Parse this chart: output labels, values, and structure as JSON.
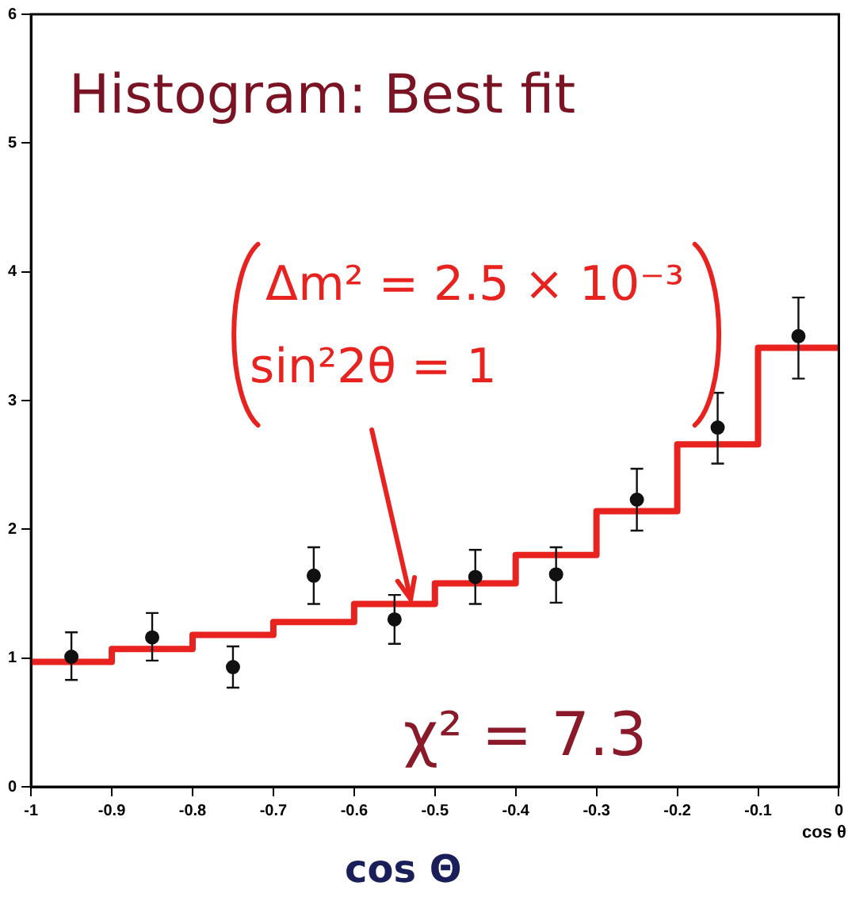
{
  "chart_data": {
    "type": "histogram",
    "title": "Histogram: Best fit",
    "xlabel": "cos θ",
    "bins": [
      -1,
      -0.9,
      -0.8,
      -0.7,
      -0.6,
      -0.5,
      -0.4,
      -0.3,
      -0.2,
      -0.1,
      0
    ],
    "series": [
      {
        "color": "#e8231f",
        "values": [
          0.97,
          1.07,
          1.18,
          1.28,
          1.42,
          1.58,
          1.8,
          2.14,
          2.66,
          3.41
        ]
      },
      {
        "type": "scatter",
        "color": "#111111",
        "x": [
          -0.95,
          -0.85,
          -0.75,
          -0.65,
          -0.55,
          -0.45,
          -0.35,
          -0.25,
          -0.15,
          -0.05
        ],
        "values": [
          1.01,
          1.16,
          0.93,
          1.64,
          1.3,
          1.63,
          1.65,
          2.23,
          2.79,
          3.5
        ],
        "errors": [
          [
            0.83,
            1.2
          ],
          [
            0.98,
            1.35
          ],
          [
            0.77,
            1.09
          ],
          [
            1.42,
            1.86
          ],
          [
            1.11,
            1.49
          ],
          [
            1.42,
            1.84
          ],
          [
            1.43,
            1.86
          ],
          [
            1.99,
            2.47
          ],
          [
            2.51,
            3.06
          ],
          [
            3.17,
            3.8
          ]
        ]
      }
    ],
    "xlim": [
      -1,
      0
    ],
    "xticks": [
      -1,
      -0.9,
      -0.8,
      -0.7,
      -0.6,
      -0.5,
      -0.4,
      -0.3,
      -0.2,
      -0.1,
      0
    ],
    "ylim": [
      0,
      6
    ],
    "yticks": [
      0,
      1,
      2,
      3,
      4,
      5,
      6
    ],
    "grid": false,
    "legend": false,
    "marker": "circle",
    "annotations": [
      "Δm² = 2.5 × 10⁻³",
      {
        "text": "sin²2θ = 1",
        "x": -0.53,
        "y": 1.42
      },
      "χ² = 7.3",
      "cos Θ"
    ]
  }
}
